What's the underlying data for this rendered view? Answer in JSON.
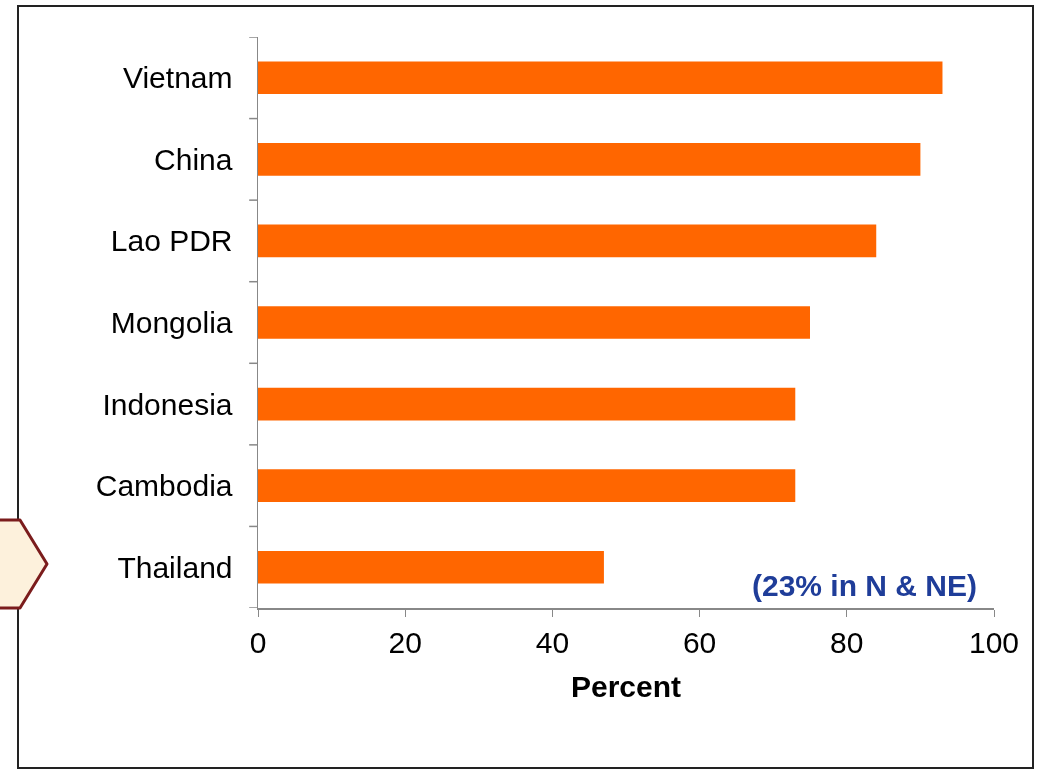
{
  "chart_data": {
    "type": "bar",
    "orientation": "horizontal",
    "categories": [
      "Vietnam",
      "China",
      "Lao PDR",
      "Mongolia",
      "Indonesia",
      "Cambodia",
      "Thailand"
    ],
    "values": [
      93,
      90,
      84,
      75,
      73,
      73,
      47
    ],
    "color": "#ff6600",
    "xlabel": "Percent",
    "xlim": [
      0,
      100
    ],
    "xticks": [
      0,
      20,
      40,
      60,
      80,
      100
    ],
    "grid": false,
    "legend": false,
    "annotations": [
      "(23% in N & NE)"
    ]
  }
}
